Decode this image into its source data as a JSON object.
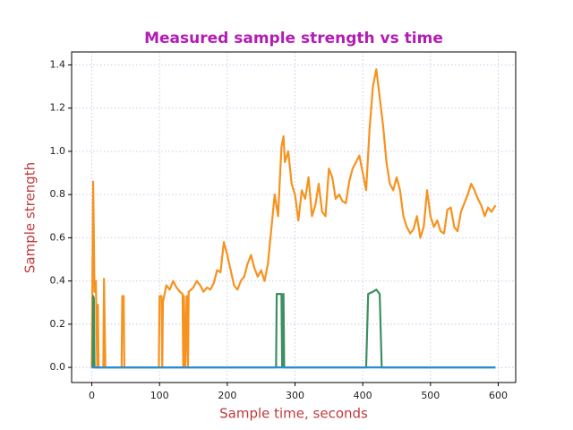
{
  "chart_data": {
    "type": "line",
    "title": "Measured sample strength vs time",
    "x_label": "Sample time, seconds",
    "y_label": "Sample strength",
    "title_color": "#b21cb5",
    "label_color": "#c0393b",
    "xlim": [
      -29.8,
      625.8
    ],
    "ylim": [
      -0.07,
      1.46
    ],
    "xticks": [
      0,
      100,
      200,
      300,
      400,
      500,
      600
    ],
    "yticks": [
      {
        "value": 0,
        "label": "0.0"
      },
      {
        "value": 0.2,
        "label": "0.2"
      },
      {
        "value": 0.4,
        "label": "0.4"
      },
      {
        "value": 0.6,
        "label": "0.6"
      },
      {
        "value": 0.8,
        "label": "0.8"
      },
      {
        "value": 1,
        "label": "1.0"
      },
      {
        "value": 1.2,
        "label": "1.2"
      },
      {
        "value": 1.4,
        "label": "1.4"
      }
    ],
    "grid": true,
    "grid_color": "#c8c2ea",
    "series": [
      {
        "color": "#f7921e",
        "x": [
          0,
          2,
          4,
          6,
          8,
          9,
          10,
          17,
          18,
          20,
          44,
          45,
          47,
          48,
          99,
          100,
          103,
          104,
          105,
          110,
          115,
          120,
          125,
          130,
          134,
          135,
          136,
          138,
          140,
          142,
          143,
          150,
          155,
          160,
          165,
          170,
          175,
          180,
          185,
          190,
          195,
          200,
          205,
          210,
          215,
          220,
          225,
          230,
          235,
          240,
          245,
          250,
          255,
          260,
          265,
          270,
          275,
          280,
          283,
          285,
          290,
          295,
          300,
          305,
          310,
          315,
          320,
          325,
          330,
          335,
          340,
          345,
          350,
          355,
          360,
          365,
          370,
          375,
          380,
          385,
          390,
          395,
          400,
          405,
          410,
          415,
          420,
          425,
          430,
          435,
          440,
          445,
          450,
          455,
          460,
          465,
          470,
          475,
          480,
          485,
          490,
          495,
          500,
          505,
          510,
          515,
          520,
          525,
          530,
          535,
          540,
          545,
          550,
          555,
          560,
          565,
          570,
          575,
          580,
          585,
          590,
          596
        ],
        "values": [
          0,
          0.86,
          0.35,
          0.4,
          0,
          0.29,
          0,
          0,
          0.41,
          0,
          0,
          0.33,
          0.33,
          0,
          0,
          0.33,
          0.33,
          0,
          0.3,
          0.38,
          0.36,
          0.4,
          0.37,
          0.35,
          0.34,
          0,
          0.33,
          0,
          0.33,
          0,
          0.35,
          0.37,
          0.4,
          0.38,
          0.35,
          0.37,
          0.36,
          0.39,
          0.45,
          0.44,
          0.58,
          0.52,
          0.45,
          0.38,
          0.36,
          0.4,
          0.42,
          0.48,
          0.52,
          0.46,
          0.42,
          0.45,
          0.4,
          0.48,
          0.64,
          0.8,
          0.7,
          1.02,
          1.07,
          0.95,
          1,
          0.85,
          0.8,
          0.68,
          0.82,
          0.78,
          0.88,
          0.7,
          0.75,
          0.85,
          0.72,
          0.7,
          0.92,
          0.88,
          0.78,
          0.8,
          0.77,
          0.76,
          0.86,
          0.92,
          0.95,
          0.98,
          0.9,
          0.82,
          1.1,
          1.3,
          1.38,
          1.25,
          1.12,
          0.95,
          0.85,
          0.82,
          0.88,
          0.82,
          0.7,
          0.65,
          0.62,
          0.64,
          0.7,
          0.6,
          0.65,
          0.82,
          0.7,
          0.65,
          0.68,
          0.63,
          0.62,
          0.73,
          0.74,
          0.65,
          0.63,
          0.72,
          0.76,
          0.8,
          0.85,
          0.82,
          0.78,
          0.75,
          0.7,
          0.74,
          0.72,
          0.75
        ]
      },
      {
        "color": "#3d8f5f",
        "x": [
          0,
          1,
          2,
          3,
          4,
          272,
          273,
          280,
          281,
          283,
          284,
          405,
          408,
          415,
          420,
          425,
          428,
          596
        ],
        "values": [
          0,
          0,
          0.33,
          0.32,
          0,
          0,
          0.34,
          0.34,
          0,
          0.34,
          0,
          0,
          0.34,
          0.35,
          0.36,
          0.34,
          0,
          0
        ]
      },
      {
        "color": "#2a8dd4",
        "x": [
          0,
          596
        ],
        "values": [
          0,
          0
        ]
      }
    ]
  }
}
